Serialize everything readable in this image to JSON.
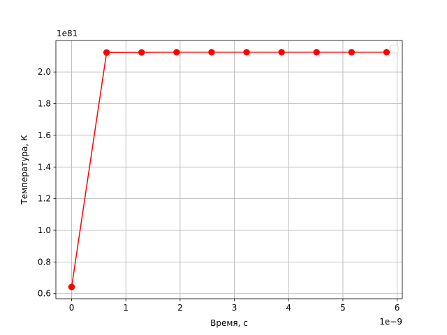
{
  "chart_data": {
    "type": "line",
    "xlabel": "Время, с",
    "ylabel": "Температура, К",
    "x_offset_label": "1e−9",
    "y_offset_label": "1e81",
    "x": [
      0,
      0.645,
      1.29,
      1.935,
      2.58,
      3.225,
      3.87,
      4.515,
      5.16,
      5.805
    ],
    "y": [
      0.642,
      2.123,
      2.124,
      2.125,
      2.125,
      2.125,
      2.125,
      2.125,
      2.125,
      2.125
    ],
    "xlim": [
      -0.29,
      6.095
    ],
    "ylim": [
      0.568,
      2.199
    ],
    "xticks": [
      0,
      1,
      2,
      3,
      4,
      5,
      6
    ],
    "xtick_labels": [
      "0",
      "1",
      "2",
      "3",
      "4",
      "5",
      "6"
    ],
    "yticks": [
      0.6,
      0.8,
      1.0,
      1.2,
      1.4,
      1.6,
      1.8,
      2.0
    ],
    "ytick_labels": [
      "0.6",
      "0.8",
      "1.0",
      "1.2",
      "1.4",
      "1.6",
      "1.8",
      "2.0"
    ],
    "grid": true,
    "legend": "upper-right-empty",
    "line_color": "#ff0000",
    "marker": "circle"
  }
}
